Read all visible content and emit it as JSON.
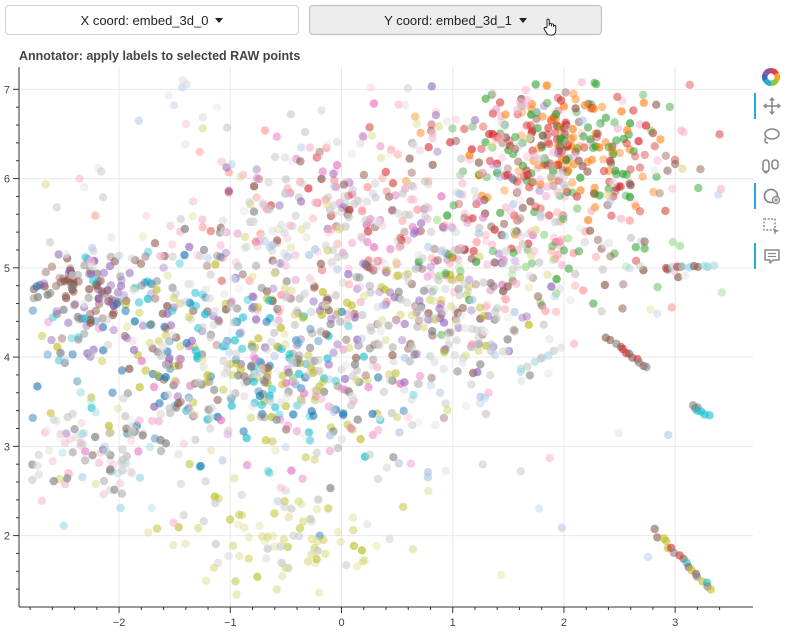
{
  "controls": {
    "x_dropdown_label": "X coord: embed_3d_0",
    "y_dropdown_label": "Y coord: embed_3d_1"
  },
  "toolbar": {
    "tools": [
      {
        "icon": "bokeh-logo-icon",
        "active": false
      },
      {
        "icon": "pan-icon",
        "active": true
      },
      {
        "icon": "lasso-select-icon",
        "active": false
      },
      {
        "icon": "poly-select-icon",
        "active": false
      },
      {
        "icon": "wheel-zoom-icon",
        "active": true
      },
      {
        "icon": "box-select-icon",
        "active": false
      },
      {
        "icon": "hover-icon",
        "active": true
      }
    ]
  },
  "chart_data": {
    "type": "scatter",
    "title": "Annotator: apply labels to selected RAW points",
    "xlabel": "",
    "ylabel": "",
    "xlim": [
      -2.9,
      3.7
    ],
    "ylim": [
      1.2,
      7.25
    ],
    "xticks": [
      -2,
      -1,
      0,
      1,
      2,
      3
    ],
    "xtick_labels": [
      "−2",
      "−1",
      "0",
      "1",
      "2",
      "3"
    ],
    "yticks": [
      2,
      3,
      4,
      5,
      6,
      7
    ],
    "ytick_labels": [
      "2",
      "3",
      "4",
      "5",
      "6",
      "7"
    ],
    "grid": true,
    "legend": "none",
    "palette": [
      "#1f77b4",
      "#ff7f0e",
      "#2ca02c",
      "#d62728",
      "#9467bd",
      "#8c564b",
      "#e377c2",
      "#7f7f7f",
      "#bcbd22",
      "#17becf",
      "#c7c7c7",
      "#f7b6d2"
    ],
    "clusters": [
      {
        "cx": 2.0,
        "cy": 6.35,
        "sx": 0.55,
        "sy": 0.45,
        "n": 340,
        "colors": [
          "#ff7f0e",
          "#2ca02c",
          "#d62728",
          "#ff7f0e",
          "#2ca02c",
          "#d62728",
          "#8c564b",
          "#f7b6d2"
        ]
      },
      {
        "cx": 0.4,
        "cy": 5.6,
        "sx": 0.9,
        "sy": 0.55,
        "n": 320,
        "colors": [
          "#e377c2",
          "#f7b6d2",
          "#9467bd",
          "#d62728",
          "#8c564b",
          "#c7c7c7",
          "#ff9896"
        ]
      },
      {
        "cx": -2.3,
        "cy": 4.75,
        "sx": 0.3,
        "sy": 0.18,
        "n": 100,
        "colors": [
          "#8c564b",
          "#7f7f7f",
          "#8c564b",
          "#9467bd"
        ]
      },
      {
        "cx": -1.5,
        "cy": 4.3,
        "sx": 0.7,
        "sy": 0.55,
        "n": 230,
        "colors": [
          "#1f77b4",
          "#8c564b",
          "#9467bd",
          "#7f7f7f",
          "#bcbd22",
          "#17becf"
        ]
      },
      {
        "cx": -0.6,
        "cy": 3.6,
        "sx": 0.75,
        "sy": 0.5,
        "n": 230,
        "colors": [
          "#17becf",
          "#bcbd22",
          "#1f77b4",
          "#e377c2",
          "#7f7f7f",
          "#c7c7c7"
        ]
      },
      {
        "cx": 0.6,
        "cy": 4.4,
        "sx": 0.6,
        "sy": 0.4,
        "n": 160,
        "colors": [
          "#7f7f7f",
          "#8c564b",
          "#9467bd",
          "#bcbd22",
          "#c7c7c7"
        ]
      },
      {
        "cx": -2.2,
        "cy": 2.9,
        "sx": 0.35,
        "sy": 0.3,
        "n": 90,
        "colors": [
          "#c7c7c7",
          "#dbdbdb",
          "#7f7f7f",
          "#f7b6d2",
          "#9edae5"
        ]
      },
      {
        "cx": -0.5,
        "cy": 2.0,
        "sx": 0.5,
        "sy": 0.3,
        "n": 90,
        "colors": [
          "#bcbd22",
          "#dbdb8d",
          "#c7c7c7",
          "#dbdb8d"
        ]
      },
      {
        "cx": 1.9,
        "cy": 5.0,
        "sx": 0.55,
        "sy": 0.35,
        "n": 90,
        "colors": [
          "#98df8a",
          "#ff9896",
          "#c7c7c7",
          "#8c564b",
          "#2ca02c"
        ]
      },
      {
        "cx": 0.0,
        "cy": 4.9,
        "sx": 1.4,
        "sy": 1.2,
        "n": 420,
        "colors": [
          "#c7c7c7",
          "#dddddd",
          "#c7c7c7",
          "#aec7e8",
          "#f7b6d2",
          "#dbdb8d",
          "#e6e6e6"
        ]
      }
    ],
    "strands": [
      {
        "x0": 2.9,
        "y0": 5.0,
        "x1": 3.35,
        "y1": 5.02,
        "n": 14,
        "colors": [
          "#d62728",
          "#8c564b",
          "#9edae5"
        ]
      },
      {
        "x0": 2.4,
        "y0": 4.2,
        "x1": 2.75,
        "y1": 3.88,
        "n": 12,
        "colors": [
          "#8c564b",
          "#d62728",
          "#7f7f7f"
        ]
      },
      {
        "x0": 3.15,
        "y0": 3.46,
        "x1": 3.3,
        "y1": 3.34,
        "n": 7,
        "colors": [
          "#7f7f7f",
          "#17becf"
        ]
      },
      {
        "x0": 2.82,
        "y0": 2.04,
        "x1": 3.33,
        "y1": 1.38,
        "n": 18,
        "colors": [
          "#d62728",
          "#8c564b",
          "#bcbd22",
          "#17becf",
          "#7f7f7f"
        ]
      },
      {
        "x0": 1.6,
        "y0": 3.85,
        "x1": 1.9,
        "y1": 4.05,
        "n": 8,
        "colors": [
          "#c7c7c7",
          "#9edae5"
        ]
      }
    ]
  }
}
